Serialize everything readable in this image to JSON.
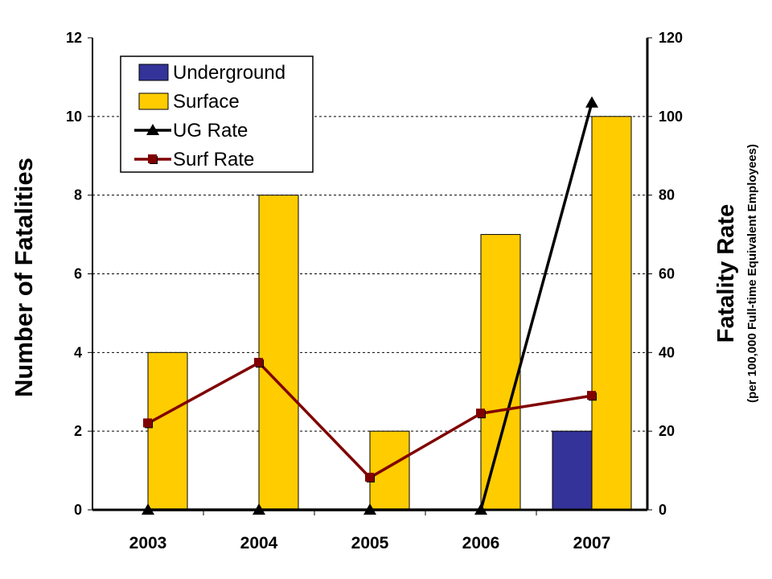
{
  "chart_data": {
    "type": "bar",
    "categories": [
      "2003",
      "2004",
      "2005",
      "2006",
      "2007"
    ],
    "series": [
      {
        "name": "Underground",
        "kind": "bar",
        "axis": "left",
        "color": "#333399",
        "values": [
          0,
          0,
          0,
          0,
          2
        ]
      },
      {
        "name": "Surface",
        "kind": "bar",
        "axis": "left",
        "color": "#FFCC00",
        "values": [
          4,
          8,
          2,
          7,
          10
        ]
      },
      {
        "name": "UG Rate",
        "kind": "line",
        "axis": "right",
        "marker": "triangle",
        "color": "#000000",
        "values": [
          0,
          0,
          0,
          0,
          103.5
        ]
      },
      {
        "name": "Surf Rate",
        "kind": "line",
        "axis": "right",
        "marker": "square",
        "color": "#800000",
        "values": [
          22.0,
          37.4,
          8.2,
          24.5,
          29.0
        ]
      }
    ],
    "ylabel": "Number of Fatalities",
    "y2label": "Fatality Rate",
    "y2sublabel": "(per 100,000 Full-time Equivalent Employees)",
    "ylim": [
      0,
      12
    ],
    "y2lim": [
      0,
      120
    ],
    "yticks": [
      "0",
      "2",
      "4",
      "6",
      "8",
      "10",
      "12"
    ],
    "y2ticks": [
      "0",
      "20",
      "40",
      "60",
      "80",
      "100",
      "120"
    ],
    "grid": "horizontal dashed",
    "legend_position": "top-left"
  }
}
